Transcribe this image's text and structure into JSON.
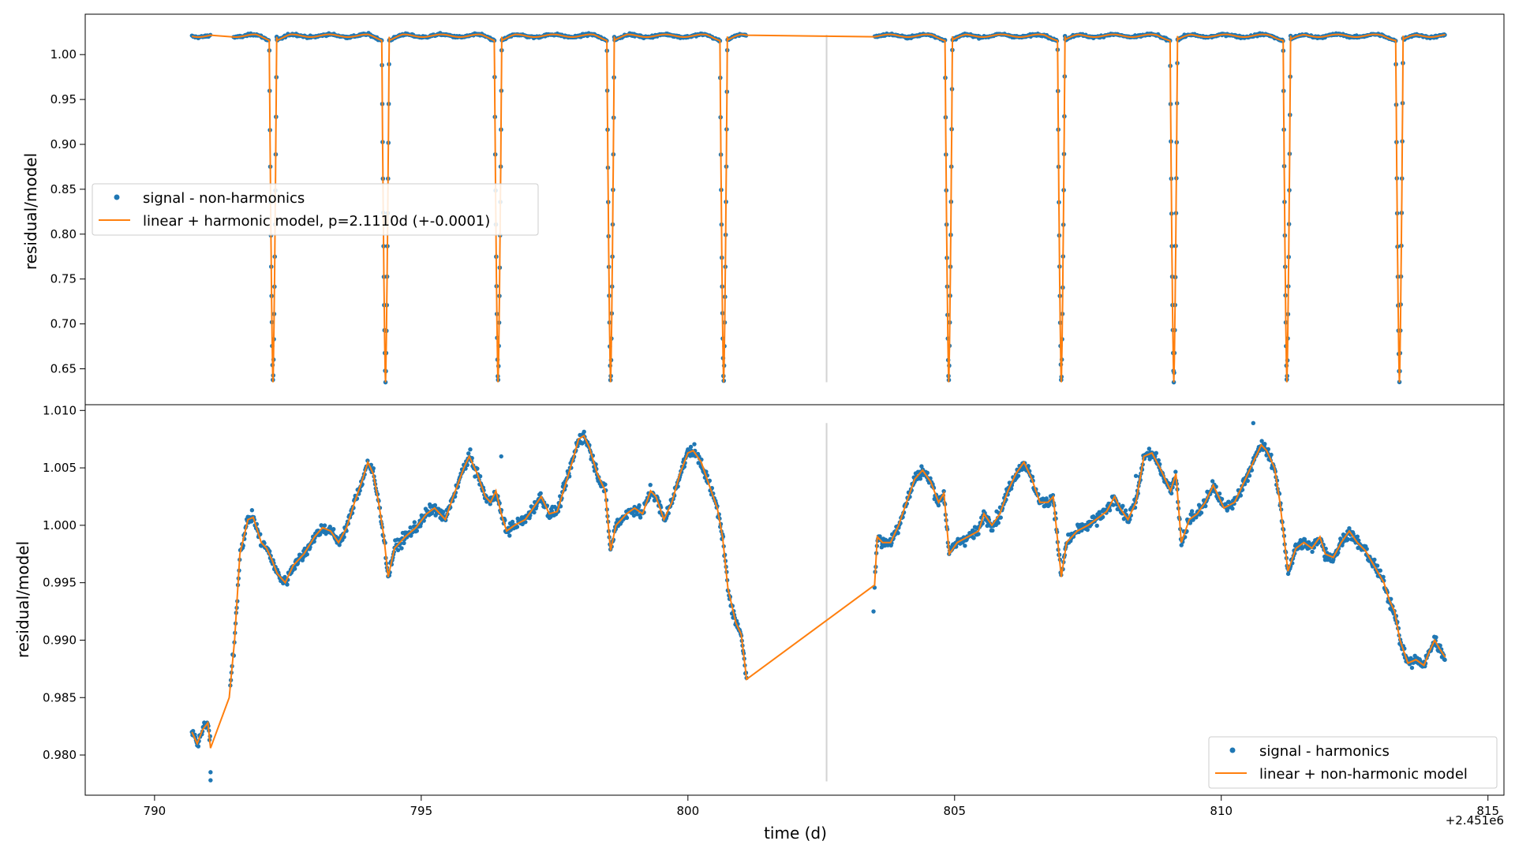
{
  "colors": {
    "signal": "#1f77b4",
    "model": "#ff7f0e",
    "vline": "#d3d3d3",
    "axis": "#000000"
  },
  "xaxis": {
    "label": "time (d)",
    "offset_text": "+2.451e6",
    "ticks": [
      790,
      795,
      800,
      805,
      810,
      815
    ],
    "tick_labels": [
      "790",
      "795",
      "800",
      "805",
      "810",
      "815"
    ],
    "lim": [
      788.7,
      815.3
    ]
  },
  "chart_data": [
    {
      "type": "scatter",
      "panel": "top",
      "ylabel": "residual/model",
      "ylim": [
        0.61,
        1.045
      ],
      "yticks": [
        0.65,
        0.7,
        0.75,
        0.8,
        0.85,
        0.9,
        0.95,
        1.0
      ],
      "ytick_labels": [
        "0.65",
        "0.70",
        "0.75",
        "0.80",
        "0.85",
        "0.90",
        "0.95",
        "1.00"
      ],
      "legend_position": "center-left",
      "vertical_line": {
        "x": 802.6,
        "y_range": [
          0.635,
          1.022
        ]
      },
      "series": [
        {
          "name": "signal - non-harmonics",
          "kind": "scatter"
        },
        {
          "name": "linear + harmonic model, p=2.1110d (+-0.0001)",
          "kind": "line"
        }
      ],
      "period": 2.111,
      "eclipse_times": [
        792.22,
        794.33,
        796.44,
        798.55,
        800.67,
        804.89,
        807.0,
        809.11,
        811.23,
        813.34
      ],
      "eclipse_depth": 0.635,
      "baseline": 1.021,
      "segments": [
        [
          790.7,
          791.05
        ],
        [
          791.48,
          801.1
        ],
        [
          803.5,
          814.2
        ]
      ]
    },
    {
      "type": "scatter",
      "panel": "bottom",
      "ylabel": "residual/model",
      "ylim": [
        0.9765,
        1.0105
      ],
      "yticks": [
        0.98,
        0.985,
        0.99,
        0.995,
        1.0,
        1.005,
        1.01
      ],
      "ytick_labels": [
        "0.980",
        "0.985",
        "0.990",
        "0.995",
        "1.000",
        "1.005",
        "1.010"
      ],
      "legend_position": "lower-right",
      "vertical_line": {
        "x": 802.6,
        "y_range": [
          0.9777,
          1.0089
        ]
      },
      "series": [
        {
          "name": "signal - harmonics",
          "kind": "scatter"
        },
        {
          "name": "linear + non-harmonic model",
          "kind": "line"
        }
      ],
      "model_points": [
        [
          790.7,
          0.982
        ],
        [
          790.8,
          0.981
        ],
        [
          790.9,
          0.9822
        ],
        [
          791.0,
          0.9828
        ],
        [
          791.05,
          0.9806
        ],
        [
          791.4,
          0.985
        ],
        [
          791.5,
          0.99
        ],
        [
          791.6,
          0.9975
        ],
        [
          791.75,
          1.0005
        ],
        [
          791.85,
          1.0007
        ],
        [
          792.0,
          0.9985
        ],
        [
          792.1,
          0.998
        ],
        [
          792.2,
          0.997
        ],
        [
          792.3,
          0.9958
        ],
        [
          792.45,
          0.995
        ],
        [
          792.6,
          0.9965
        ],
        [
          792.8,
          0.9975
        ],
        [
          793.0,
          0.999
        ],
        [
          793.15,
          0.9998
        ],
        [
          793.3,
          0.9995
        ],
        [
          793.45,
          0.9985
        ],
        [
          793.6,
          0.9998
        ],
        [
          793.75,
          1.002
        ],
        [
          793.9,
          1.004
        ],
        [
          794.0,
          1.0055
        ],
        [
          794.1,
          1.0045
        ],
        [
          794.2,
          1.002
        ],
        [
          794.3,
          0.999
        ],
        [
          794.38,
          0.9955
        ],
        [
          794.5,
          0.998
        ],
        [
          794.7,
          0.999
        ],
        [
          794.9,
          0.9998
        ],
        [
          795.1,
          1.001
        ],
        [
          795.25,
          1.0015
        ],
        [
          795.45,
          1.0005
        ],
        [
          795.6,
          1.0025
        ],
        [
          795.8,
          1.005
        ],
        [
          795.9,
          1.006
        ],
        [
          796.05,
          1.0045
        ],
        [
          796.2,
          1.0025
        ],
        [
          796.3,
          1.002
        ],
        [
          796.4,
          1.003
        ],
        [
          796.5,
          1.001
        ],
        [
          796.6,
          0.9995
        ],
        [
          796.75,
          1.0
        ],
        [
          796.95,
          1.0005
        ],
        [
          797.1,
          1.0015
        ],
        [
          797.25,
          1.0025
        ],
        [
          797.4,
          1.001
        ],
        [
          797.55,
          1.0012
        ],
        [
          797.7,
          1.0035
        ],
        [
          797.85,
          1.0058
        ],
        [
          797.95,
          1.0075
        ],
        [
          798.05,
          1.0078
        ],
        [
          798.15,
          1.0068
        ],
        [
          798.3,
          1.0045
        ],
        [
          798.45,
          1.003
        ],
        [
          798.55,
          0.9978
        ],
        [
          798.65,
          1.0
        ],
        [
          798.85,
          1.001
        ],
        [
          799.0,
          1.0015
        ],
        [
          799.15,
          1.001
        ],
        [
          799.3,
          1.003
        ],
        [
          799.4,
          1.0025
        ],
        [
          799.55,
          1.0005
        ],
        [
          799.7,
          1.002
        ],
        [
          799.85,
          1.0045
        ],
        [
          800.0,
          1.0063
        ],
        [
          800.1,
          1.0065
        ],
        [
          800.25,
          1.0055
        ],
        [
          800.4,
          1.0035
        ],
        [
          800.55,
          1.0015
        ],
        [
          800.65,
          0.999
        ],
        [
          800.75,
          0.9945
        ],
        [
          800.9,
          0.9915
        ],
        [
          801.0,
          0.9905
        ],
        [
          801.1,
          0.9866
        ],
        [
          803.5,
          0.9948
        ],
        [
          803.55,
          0.999
        ],
        [
          803.65,
          0.9985
        ],
        [
          803.8,
          0.9985
        ],
        [
          803.95,
          1.0
        ],
        [
          804.1,
          1.002
        ],
        [
          804.25,
          1.004
        ],
        [
          804.4,
          1.0048
        ],
        [
          804.55,
          1.0038
        ],
        [
          804.7,
          1.002
        ],
        [
          804.8,
          1.0028
        ],
        [
          804.9,
          0.9975
        ],
        [
          805.05,
          0.9985
        ],
        [
          805.25,
          0.999
        ],
        [
          805.45,
          0.9995
        ],
        [
          805.55,
          1.001
        ],
        [
          805.7,
          1.0
        ],
        [
          805.85,
          1.001
        ],
        [
          806.0,
          1.003
        ],
        [
          806.15,
          1.0045
        ],
        [
          806.3,
          1.0055
        ],
        [
          806.45,
          1.004
        ],
        [
          806.6,
          1.002
        ],
        [
          806.75,
          1.002
        ],
        [
          806.85,
          1.0025
        ],
        [
          807.0,
          0.9955
        ],
        [
          807.1,
          0.9985
        ],
        [
          807.3,
          0.9995
        ],
        [
          807.5,
          1.0
        ],
        [
          807.65,
          1.0005
        ],
        [
          807.85,
          1.0012
        ],
        [
          808.0,
          1.0025
        ],
        [
          808.1,
          1.0015
        ],
        [
          808.25,
          1.0005
        ],
        [
          808.4,
          1.002
        ],
        [
          808.55,
          1.006
        ],
        [
          808.7,
          1.0063
        ],
        [
          808.85,
          1.005
        ],
        [
          808.95,
          1.004
        ],
        [
          809.05,
          1.003
        ],
        [
          809.15,
          1.0045
        ],
        [
          809.25,
          0.9985
        ],
        [
          809.4,
          1.0005
        ],
        [
          809.55,
          1.001
        ],
        [
          809.7,
          1.002
        ],
        [
          809.85,
          1.0035
        ],
        [
          809.95,
          1.0025
        ],
        [
          810.05,
          1.0015
        ],
        [
          810.25,
          1.002
        ],
        [
          810.45,
          1.004
        ],
        [
          810.6,
          1.0055
        ],
        [
          810.75,
          1.007
        ],
        [
          810.85,
          1.0065
        ],
        [
          811.0,
          1.005
        ],
        [
          811.1,
          1.002
        ],
        [
          811.25,
          0.996
        ],
        [
          811.4,
          0.998
        ],
        [
          811.55,
          0.9985
        ],
        [
          811.7,
          0.998
        ],
        [
          811.85,
          0.999
        ],
        [
          811.95,
          0.9975
        ],
        [
          812.1,
          0.9972
        ],
        [
          812.25,
          0.9985
        ],
        [
          812.4,
          0.9995
        ],
        [
          812.55,
          0.9985
        ],
        [
          812.7,
          0.9978
        ],
        [
          812.9,
          0.9962
        ],
        [
          813.05,
          0.995
        ],
        [
          813.15,
          0.9935
        ],
        [
          813.25,
          0.9925
        ],
        [
          813.35,
          0.99
        ],
        [
          813.5,
          0.988
        ],
        [
          813.65,
          0.9883
        ],
        [
          813.8,
          0.9878
        ],
        [
          813.9,
          0.989
        ],
        [
          814.0,
          0.99
        ],
        [
          814.1,
          0.9892
        ],
        [
          814.2,
          0.9885
        ]
      ]
    }
  ]
}
